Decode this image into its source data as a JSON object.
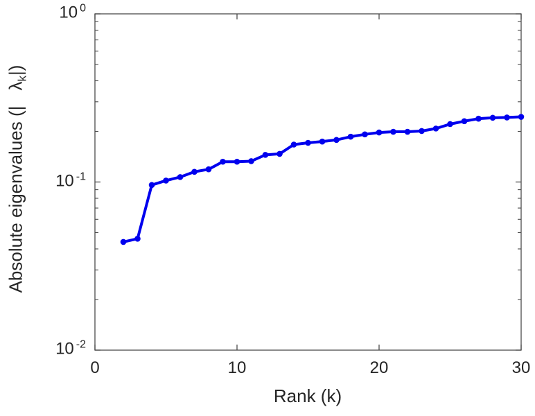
{
  "chart_data": {
    "type": "line",
    "title": "",
    "xlabel": "Rank (k)",
    "ylabel_prefix": "Absolute eigenvalues (|",
    "ylabel_symbol": "λ",
    "ylabel_subscript": "k",
    "ylabel_suffix": "|)",
    "y_scale": "log",
    "grid": false,
    "legend": "none",
    "xlim": [
      0,
      30
    ],
    "ylim": [
      0.01,
      1
    ],
    "x_ticks": [
      {
        "value": 0,
        "label": "0"
      },
      {
        "value": 10,
        "label": "10"
      },
      {
        "value": 20,
        "label": "20"
      },
      {
        "value": 30,
        "label": "30"
      }
    ],
    "y_ticks": [
      {
        "value": 1,
        "base": "10",
        "exp": "0"
      },
      {
        "value": 0.1,
        "base": "10",
        "exp": "-1"
      },
      {
        "value": 0.01,
        "base": "10",
        "exp": "-2"
      }
    ],
    "series": [
      {
        "name": "absolute-eigenvalues",
        "x": [
          2,
          3,
          4,
          5,
          6,
          7,
          8,
          9,
          10,
          11,
          12,
          13,
          14,
          15,
          16,
          17,
          18,
          19,
          20,
          21,
          22,
          23,
          24,
          25,
          26,
          27,
          28,
          29,
          30
        ],
        "values": [
          0.044,
          0.046,
          0.096,
          0.102,
          0.107,
          0.115,
          0.119,
          0.132,
          0.132,
          0.133,
          0.145,
          0.147,
          0.167,
          0.171,
          0.174,
          0.178,
          0.186,
          0.192,
          0.197,
          0.199,
          0.199,
          0.201,
          0.208,
          0.221,
          0.23,
          0.238,
          0.241,
          0.242,
          0.244
        ]
      }
    ],
    "line_color": "#0000EE",
    "marker": "filled-circle",
    "axis_color": "#4a4a4a",
    "text_color": "#262626",
    "background_color": "#FFFFFF"
  }
}
